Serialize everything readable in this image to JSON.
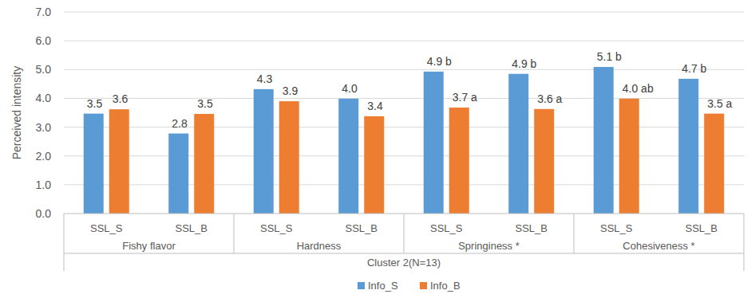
{
  "chart_data": {
    "type": "bar",
    "categories": [
      "SSL_S",
      "SSL_B",
      "SSL_S",
      "SSL_B",
      "SSL_S",
      "SSL_B",
      "SSL_S",
      "SSL_B"
    ],
    "category_groups": [
      "Fishy flavor",
      "Hardness",
      "Springiness *",
      "Cohesiveness *"
    ],
    "xlabel": "Cluster 2(N=13)",
    "ylabel": "Perceived intensity",
    "series": [
      {
        "name": "Info_S",
        "color": "#5b9bd5",
        "values": [
          3.47,
          2.78,
          4.32,
          3.99,
          4.93,
          4.85,
          5.09,
          4.68
        ],
        "value_labels": [
          "3.5",
          "2.8",
          "4.3",
          "4.0",
          "4.9 b",
          "4.9 b",
          "5.1 b",
          "4.7 b"
        ]
      },
      {
        "name": "Info_B",
        "color": "#ed7d31",
        "values": [
          3.62,
          3.46,
          3.9,
          3.38,
          3.68,
          3.63,
          3.99,
          3.47
        ],
        "value_labels": [
          "3.6",
          "3.5",
          "3.9",
          "3.4",
          "3.7 a",
          "3.6 a",
          "4.0 ab",
          "3.5 a"
        ]
      }
    ],
    "ylim": [
      0,
      7
    ],
    "yticks": [
      {
        "value": 0,
        "label": "0.0"
      },
      {
        "value": 1,
        "label": "1.0"
      },
      {
        "value": 2,
        "label": "2.0"
      },
      {
        "value": 3,
        "label": "3.0"
      },
      {
        "value": 4,
        "label": "4.0"
      },
      {
        "value": 5,
        "label": "5.0"
      },
      {
        "value": 6,
        "label": "6.0"
      },
      {
        "value": 7,
        "label": "7.0"
      }
    ],
    "grid": true,
    "data_labels": true,
    "legend": "bottom"
  }
}
